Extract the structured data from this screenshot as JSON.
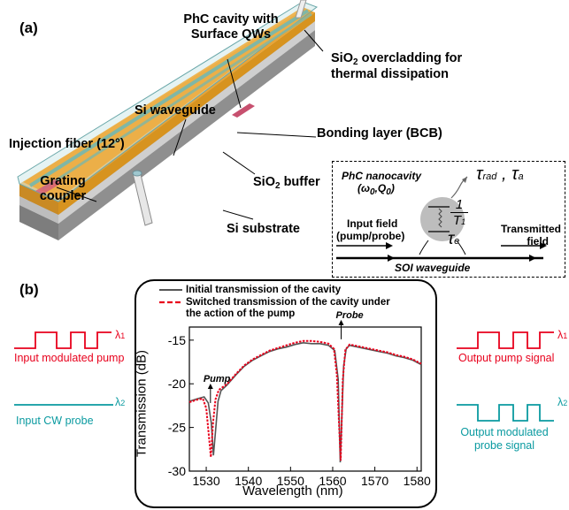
{
  "panel_a": {
    "label": "(a)",
    "labels": {
      "phc_cavity_line1": "PhC cavity with",
      "phc_cavity_line2": "Surface QWs",
      "sio2_over_line1": "SiO",
      "sio2_over_sub": "2",
      "sio2_over_rest": " overcladding for",
      "sio2_over_line2": "thermal dissipation",
      "si_waveguide": "Si waveguide",
      "bonding_layer": "Bonding layer (BCB)",
      "injection_fiber": "Injection fiber (12°)",
      "grating_line1": "Grating",
      "grating_line2": "coupler",
      "sio2_buffer_pre": "SiO",
      "sio2_buffer_sub": "2",
      "sio2_buffer_rest": " buffer",
      "si_substrate": "Si substrate"
    },
    "inset": {
      "title_line1": "PhC nanocavity",
      "title_line2": "(ω",
      "title_sub0a": "0",
      "title_mid": ",Q",
      "title_sub0b": "0",
      "title_end": ")",
      "tau_rad": "τ",
      "tau_rad_sub": "rad",
      "tau_sep": " , ",
      "tau_a": "τ",
      "tau_a_sub": "a",
      "frac_num": "1",
      "frac_den": "T",
      "frac_den_sub": "1",
      "tau_e": "τ",
      "tau_e_sub": "e",
      "input_line1": "Input field",
      "input_line2": "(pump/probe)",
      "transmitted_line1": "Transmitted",
      "transmitted_line2": "field",
      "soi": "SOI waveguide"
    },
    "colors": {
      "orange": "#e9a435",
      "orange_dark": "#b97a1c",
      "glass": "#cfe9ea",
      "glass_edge": "#6aa7a9",
      "substrate": "#8f8f8f",
      "buffer": "#c9c9c9",
      "waveguide": "#7fb7a6",
      "cavity": "#c7506f"
    }
  },
  "panel_b": {
    "label": "(b)",
    "left_pump_label": "Input modulated pump",
    "left_probe_label": "Input CW probe",
    "right_pump_label": "Output pump signal",
    "right_probe_line1": "Output modulated",
    "right_probe_line2": "probe signal",
    "lambda1": "λ",
    "lambda1_sub": "1",
    "lambda2": "λ",
    "lambda2_sub": "2",
    "colors": {
      "pump": "#e8001c",
      "probe": "#0a9aa0"
    }
  },
  "chart_data": {
    "type": "line",
    "xlabel": "Wavelength (nm)",
    "ylabel": "Transmission (dB)",
    "xlim": [
      1526,
      1581
    ],
    "ylim": [
      -30,
      -13.5
    ],
    "xticks": [
      1530,
      1540,
      1550,
      1560,
      1570,
      1580
    ],
    "yticks": [
      -30,
      -25,
      -20,
      -15
    ],
    "xtick_labels": [
      "1530",
      "1540",
      "1550",
      "1560",
      "1570",
      "1580"
    ],
    "ytick_labels": [
      "-30",
      "-25",
      "-20",
      "-15"
    ],
    "legend_placement": "top",
    "annotations": [
      {
        "text": "Pump",
        "x": 1531,
        "y": -22.2
      },
      {
        "text": "Probe",
        "x": 1562,
        "y": -14.9
      }
    ],
    "series": [
      {
        "name": "Initial transmission of the cavity",
        "color": "#555555",
        "dash": "solid",
        "x": [
          1526,
          1528,
          1529.5,
          1530.5,
          1531.2,
          1531.7,
          1532.2,
          1532.8,
          1533.5,
          1535,
          1537,
          1539,
          1541,
          1543,
          1545,
          1547,
          1549,
          1551,
          1553,
          1555,
          1557,
          1559,
          1560.5,
          1561.3,
          1561.8,
          1562.2,
          1562.6,
          1563.2,
          1564,
          1565,
          1567,
          1569,
          1571,
          1573,
          1575,
          1577,
          1579,
          1581
        ],
        "y": [
          -22,
          -21.7,
          -21.5,
          -22.2,
          -24.5,
          -28.2,
          -25.5,
          -22,
          -20.8,
          -20.1,
          -19.0,
          -18.0,
          -17.3,
          -16.8,
          -16.3,
          -16.0,
          -15.8,
          -15.5,
          -15.3,
          -15.4,
          -15.4,
          -15.6,
          -16.2,
          -19.5,
          -29.0,
          -23.5,
          -18.0,
          -16.0,
          -15.6,
          -15.7,
          -15.9,
          -16.1,
          -16.3,
          -16.5,
          -16.8,
          -17.0,
          -17.3,
          -17.8
        ]
      },
      {
        "name": "Switched transmission of the cavity under",
        "name_line2": "the action of the pump",
        "color": "#e8001c",
        "dash": "dashed",
        "x": [
          1526,
          1528,
          1529.2,
          1530,
          1530.6,
          1531.1,
          1531.6,
          1532.2,
          1533,
          1535,
          1537,
          1539,
          1541,
          1543,
          1545,
          1547,
          1549,
          1551,
          1553,
          1555,
          1557,
          1559,
          1560.3,
          1561,
          1561.5,
          1561.9,
          1562.4,
          1563,
          1564,
          1565,
          1567,
          1569,
          1571,
          1573,
          1575,
          1577,
          1579,
          1581
        ],
        "y": [
          -22.1,
          -21.8,
          -21.7,
          -22.8,
          -25.8,
          -28.4,
          -24.5,
          -21.8,
          -20.7,
          -20.0,
          -18.9,
          -17.9,
          -17.2,
          -16.7,
          -16.2,
          -15.9,
          -15.6,
          -15.3,
          -15.1,
          -15.1,
          -15.2,
          -15.4,
          -16.0,
          -19.0,
          -24.5,
          -28.8,
          -19.5,
          -16.1,
          -15.5,
          -15.6,
          -15.8,
          -16.0,
          -16.2,
          -16.4,
          -16.7,
          -16.9,
          -17.2,
          -17.7
        ]
      }
    ]
  }
}
